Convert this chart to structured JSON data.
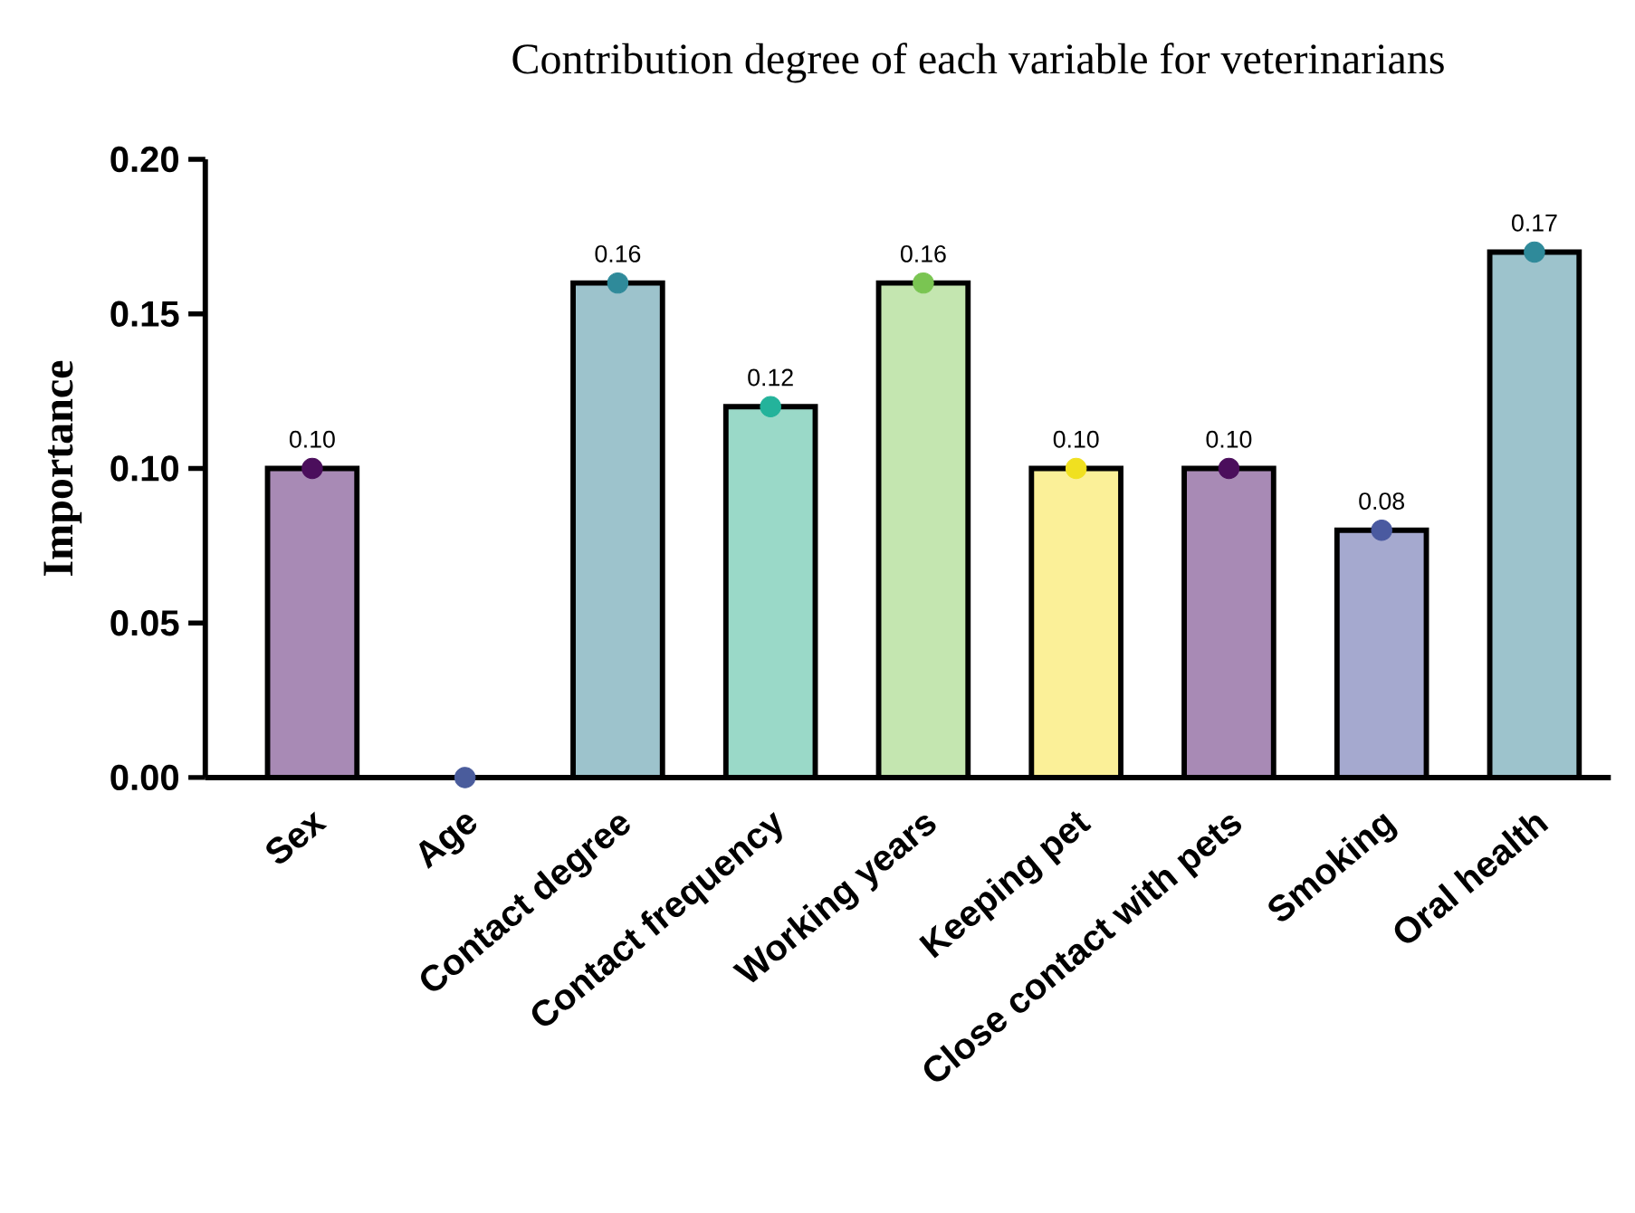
{
  "chart_data": {
    "type": "bar",
    "title": "Contribution degree of each variable for veterinarians",
    "ylabel": "Importance",
    "categories": [
      "Sex",
      "Age",
      "Contact degree",
      "Contact frequency",
      "Working years",
      "Keeping pet",
      "Close contact with pets",
      "Smoking",
      "Oral health"
    ],
    "ylim": [
      0,
      0.2
    ],
    "yticks": [
      {
        "value": 0,
        "label": "0.00"
      },
      {
        "value": 0.05,
        "label": "0.05"
      },
      {
        "value": 0.1,
        "label": "0.10"
      },
      {
        "value": 0.15,
        "label": "0.15"
      },
      {
        "value": 0.2,
        "label": "0.20"
      }
    ],
    "series": [
      {
        "values": [
          0.1,
          0,
          0.16,
          0.12,
          0.16,
          0.1,
          0.1,
          0.08,
          0.17
        ],
        "colors": [
          "#a88ab5",
          "#a5a9cf",
          "#9dc3cc",
          "#9ad9c8",
          "#c4e6b0",
          "#fbf098",
          "#a88ab5",
          "#a5a9cf",
          "#9dc3cc"
        ],
        "value_labels": [
          "0.10",
          null,
          "0.16",
          "0.12",
          "0.16",
          "0.10",
          "0.10",
          "0.08",
          "0.17"
        ]
      },
      {
        "type": "scatter",
        "marker": "circle",
        "x": [
          "Sex",
          "Age",
          "Contact degree",
          "Contact frequency",
          "Working years",
          "Keeping pet",
          "Close contact with pets",
          "Smoking",
          "Oral health"
        ],
        "values": [
          0.1,
          0,
          0.16,
          0.12,
          0.16,
          0.1,
          0.1,
          0.08,
          0.17
        ],
        "colors": [
          "#4b0e5c",
          "#4a5c9c",
          "#2f8a9a",
          "#24b39b",
          "#7ac552",
          "#f0e020",
          "#4b0e5c",
          "#4a5aa0",
          "#2f8a9a"
        ]
      }
    ]
  }
}
